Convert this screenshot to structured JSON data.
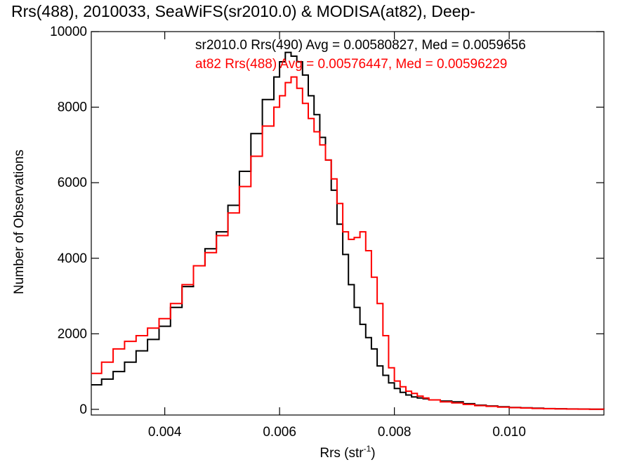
{
  "chart_data": {
    "type": "line",
    "title": "Rrs(488), 2010033, SeaWiFS(sr2010.0) & MODISA(at82), Deep-",
    "xlabel": "Rrs (str",
    "xlabel_sup": "-1",
    "xlabel_close": ")",
    "ylabel": "Number of Observations",
    "xlim": [
      0.00272,
      0.01165
    ],
    "ylim": [
      -150,
      10000
    ],
    "xticks": [
      {
        "value": 0.004,
        "label": "0.004"
      },
      {
        "value": 0.006,
        "label": "0.006"
      },
      {
        "value": 0.008,
        "label": "0.008"
      },
      {
        "value": 0.01,
        "label": "0.010"
      }
    ],
    "yticks": [
      {
        "value": 0,
        "label": "0"
      },
      {
        "value": 2000,
        "label": "2000"
      },
      {
        "value": 4000,
        "label": "4000"
      },
      {
        "value": 6000,
        "label": "6000"
      },
      {
        "value": 8000,
        "label": "8000"
      },
      {
        "value": 10000,
        "label": "10000"
      }
    ],
    "grid": false,
    "series": [
      {
        "name": "sr2010.0 Rrs(490) Avg = 0.00580827, Med = 0.0059656",
        "color": "#000000",
        "x": [
          0.00272,
          0.0029,
          0.0031,
          0.0033,
          0.0035,
          0.0037,
          0.0039,
          0.0041,
          0.0043,
          0.0045,
          0.0047,
          0.0049,
          0.0051,
          0.0053,
          0.0055,
          0.0057,
          0.0059,
          0.006,
          0.0061,
          0.0062,
          0.0063,
          0.0064,
          0.0065,
          0.0066,
          0.0067,
          0.0068,
          0.0069,
          0.007,
          0.0071,
          0.0072,
          0.0073,
          0.0074,
          0.0075,
          0.0076,
          0.0077,
          0.0078,
          0.0079,
          0.008,
          0.0081,
          0.0082,
          0.0083,
          0.0084,
          0.0085,
          0.0086,
          0.0088,
          0.009,
          0.0092,
          0.0094,
          0.0096,
          0.0098,
          0.01,
          0.0102,
          0.0104,
          0.0106,
          0.0108,
          0.011,
          0.0112,
          0.0114,
          0.01165
        ],
        "y": [
          650,
          800,
          1000,
          1250,
          1550,
          1850,
          2200,
          2700,
          3250,
          3800,
          4250,
          4700,
          5400,
          6300,
          7300,
          8200,
          8800,
          9200,
          9450,
          9350,
          9200,
          8850,
          8300,
          7800,
          7200,
          6600,
          5800,
          4900,
          4100,
          3300,
          2700,
          2250,
          1900,
          1600,
          1150,
          900,
          700,
          550,
          450,
          380,
          330,
          300,
          280,
          250,
          220,
          200,
          150,
          110,
          90,
          70,
          50,
          40,
          30,
          20,
          15,
          10,
          8,
          5,
          3
        ]
      },
      {
        "name": "at82 Rrs(488) Avg = 0.00576447, Med = 0.00596229",
        "color": "#ff0000",
        "x": [
          0.00272,
          0.0029,
          0.0031,
          0.0033,
          0.0035,
          0.0037,
          0.0039,
          0.0041,
          0.0043,
          0.0045,
          0.0047,
          0.0049,
          0.0051,
          0.0053,
          0.0055,
          0.0057,
          0.0059,
          0.006,
          0.0061,
          0.0062,
          0.0063,
          0.0064,
          0.0065,
          0.0066,
          0.0067,
          0.0068,
          0.0069,
          0.007,
          0.0071,
          0.0072,
          0.0073,
          0.0074,
          0.0075,
          0.0076,
          0.0077,
          0.0078,
          0.0079,
          0.008,
          0.0081,
          0.0082,
          0.0083,
          0.0084,
          0.0085,
          0.0086,
          0.0088,
          0.009,
          0.0092,
          0.0094,
          0.0096,
          0.0098,
          0.01,
          0.0102,
          0.0104,
          0.0106,
          0.0108,
          0.011,
          0.0112,
          0.0114,
          0.01165
        ],
        "y": [
          950,
          1250,
          1600,
          1800,
          1950,
          2150,
          2400,
          2800,
          3300,
          3800,
          4150,
          4600,
          5200,
          5900,
          6700,
          7500,
          8000,
          8300,
          8650,
          8800,
          8500,
          8100,
          7700,
          7350,
          7000,
          6600,
          6100,
          5450,
          4700,
          4500,
          4550,
          4700,
          4200,
          3500,
          2800,
          1950,
          1100,
          750,
          600,
          480,
          420,
          350,
          300,
          250,
          200,
          170,
          130,
          100,
          80,
          60,
          45,
          35,
          25,
          18,
          12,
          8,
          6,
          4,
          3
        ]
      }
    ]
  }
}
